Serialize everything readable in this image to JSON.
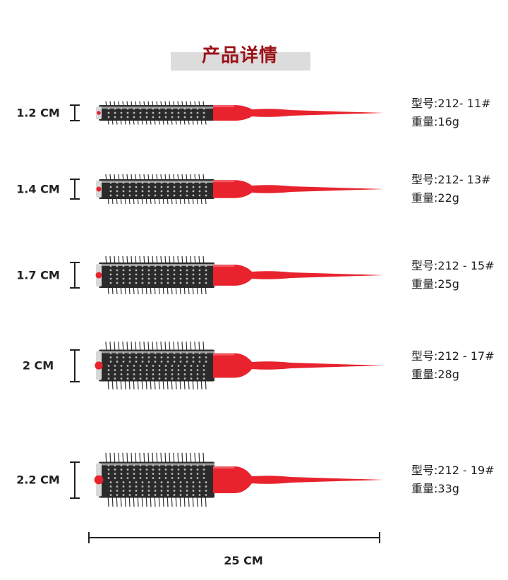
{
  "title": "产品详情",
  "colors": {
    "title": "#9b1219",
    "handle": "#e8232e",
    "barrel": "#2b2b2b"
  },
  "products": [
    {
      "size": "1.2 CM",
      "diameter_cm": 1.2,
      "model": "型号:212- 11#",
      "weight": "重量:16g"
    },
    {
      "size": "1.4 CM",
      "diameter_cm": 1.4,
      "model": "型号:212- 13#",
      "weight": "重量:22g"
    },
    {
      "size": "1.7 CM",
      "diameter_cm": 1.7,
      "model": "型号:212 - 15#",
      "weight": "重量:25g"
    },
    {
      "size": "2 CM",
      "diameter_cm": 2.0,
      "model": "型号:212 - 17#",
      "weight": "重量:28g"
    },
    {
      "size": "2.2 CM",
      "diameter_cm": 2.2,
      "model": "型号:212 - 19#",
      "weight": "重量:33g"
    }
  ],
  "length_label": "25 CM"
}
